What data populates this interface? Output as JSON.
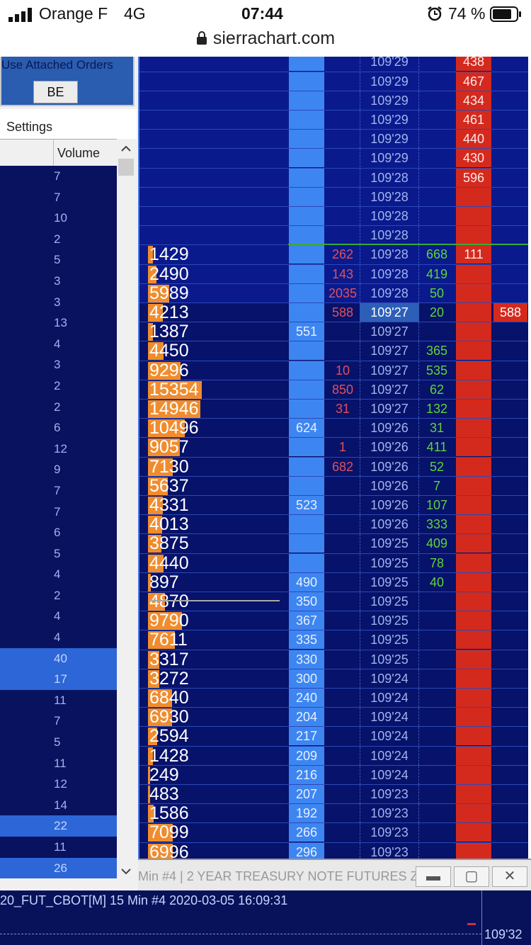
{
  "status_bar": {
    "carrier": "Orange F",
    "network": "4G",
    "time": "07:44",
    "battery": "74 %",
    "url": "sierrachart.com",
    "icons": [
      "signal-icon",
      "lock-icon",
      "alarm-icon",
      "battery-icon"
    ]
  },
  "left_panel": {
    "attached_orders_label": "Use Attached Orders",
    "be_button": "BE",
    "settings_tab": "Settings",
    "volume_header": "Volume",
    "volumes": [
      {
        "v": "7"
      },
      {
        "v": "7"
      },
      {
        "v": "10"
      },
      {
        "v": "2"
      },
      {
        "v": "5"
      },
      {
        "v": "3"
      },
      {
        "v": "3"
      },
      {
        "v": "13"
      },
      {
        "v": "4"
      },
      {
        "v": "3"
      },
      {
        "v": "2"
      },
      {
        "v": "2"
      },
      {
        "v": "6"
      },
      {
        "v": "12"
      },
      {
        "v": "9"
      },
      {
        "v": "7"
      },
      {
        "v": "7"
      },
      {
        "v": "6"
      },
      {
        "v": "5"
      },
      {
        "v": "4"
      },
      {
        "v": "2"
      },
      {
        "v": "4"
      },
      {
        "v": "4"
      },
      {
        "v": "40",
        "hl": true
      },
      {
        "v": "17",
        "hl": true
      },
      {
        "v": "11"
      },
      {
        "v": "7"
      },
      {
        "v": "5"
      },
      {
        "v": "11"
      },
      {
        "v": "12"
      },
      {
        "v": "14"
      },
      {
        "v": "22",
        "hl": true
      },
      {
        "v": "11"
      },
      {
        "v": "26",
        "hl": true
      }
    ]
  },
  "ladder": {
    "columns": [
      "volume",
      "bid",
      "sell",
      "price",
      "buy",
      "ask",
      "order"
    ],
    "current_price_row": 13,
    "max_volume": 15354,
    "colors": {
      "volume_bar": "#f08c2e",
      "bid": "#3d86f2",
      "ask": "#d42a1e",
      "sell_text": "#e0505a",
      "buy_text": "#5ed43a",
      "last_trade_line": "#3aa838"
    },
    "rows": [
      [
        "",
        "",
        "",
        "109'29",
        "",
        "438",
        ""
      ],
      [
        "",
        "",
        "",
        "109'29",
        "",
        "467",
        ""
      ],
      [
        "",
        "",
        "",
        "109'29",
        "",
        "434",
        ""
      ],
      [
        "",
        "",
        "",
        "109'29",
        "",
        "461",
        ""
      ],
      [
        "",
        "",
        "",
        "109'29",
        "",
        "440",
        ""
      ],
      [
        "",
        "",
        "",
        "109'29",
        "",
        "430",
        ""
      ],
      [
        "",
        "",
        "",
        "109'28",
        "",
        "596",
        ""
      ],
      [
        "",
        "",
        "",
        "109'28",
        "",
        "",
        ""
      ],
      [
        "",
        "",
        "",
        "109'28",
        "",
        "",
        ""
      ],
      [
        "",
        "",
        "",
        "109'28",
        "",
        "",
        ""
      ],
      [
        "1429",
        "",
        "262",
        "109'28",
        "668",
        "111",
        ""
      ],
      [
        "2490",
        "",
        "143",
        "109'28",
        "419",
        "",
        ""
      ],
      [
        "5989",
        "",
        "2035",
        "109'28",
        "50",
        "",
        ""
      ],
      [
        "4213",
        "",
        "588",
        "109'27",
        "20",
        "",
        "588"
      ],
      [
        "1387",
        "551",
        "",
        "109'27",
        "",
        "",
        ""
      ],
      [
        "4450",
        "",
        "",
        "109'27",
        "365",
        "",
        ""
      ],
      [
        "9296",
        "",
        "10",
        "109'27",
        "535",
        "",
        ""
      ],
      [
        "15354",
        "",
        "850",
        "109'27",
        "62",
        "",
        ""
      ],
      [
        "14946",
        "",
        "31",
        "109'27",
        "132",
        "",
        ""
      ],
      [
        "10496",
        "624",
        "",
        "109'26",
        "31",
        "",
        ""
      ],
      [
        "9057",
        "",
        "1",
        "109'26",
        "411",
        "",
        ""
      ],
      [
        "7130",
        "",
        "682",
        "109'26",
        "52",
        "",
        ""
      ],
      [
        "5637",
        "",
        "",
        "109'26",
        "7",
        "",
        ""
      ],
      [
        "4331",
        "523",
        "",
        "109'26",
        "107",
        "",
        ""
      ],
      [
        "4013",
        "",
        "",
        "109'26",
        "333",
        "",
        ""
      ],
      [
        "3875",
        "",
        "",
        "109'25",
        "409",
        "",
        ""
      ],
      [
        "4440",
        "",
        "",
        "109'25",
        "78",
        "",
        ""
      ],
      [
        "897",
        "490",
        "",
        "109'25",
        "40",
        "",
        ""
      ],
      [
        "4870",
        "350",
        "",
        "109'25",
        "",
        "",
        ""
      ],
      [
        "9790",
        "367",
        "",
        "109'25",
        "",
        "",
        ""
      ],
      [
        "7611",
        "335",
        "",
        "109'25",
        "",
        "",
        ""
      ],
      [
        "3317",
        "330",
        "",
        "109'25",
        "",
        "",
        ""
      ],
      [
        "3272",
        "300",
        "",
        "109'24",
        "",
        "",
        ""
      ],
      [
        "6840",
        "240",
        "",
        "109'24",
        "",
        "",
        ""
      ],
      [
        "6930",
        "204",
        "",
        "109'24",
        "",
        "",
        ""
      ],
      [
        "2594",
        "217",
        "",
        "109'24",
        "",
        "",
        ""
      ],
      [
        "1428",
        "209",
        "",
        "109'24",
        "",
        "",
        ""
      ],
      [
        "249",
        "216",
        "",
        "109'24",
        "",
        "",
        ""
      ],
      [
        "483",
        "207",
        "",
        "109'23",
        "",
        "",
        ""
      ],
      [
        "1586",
        "192",
        "",
        "109'23",
        "",
        "",
        ""
      ],
      [
        "7099",
        "266",
        "",
        "109'23",
        "",
        "",
        ""
      ],
      [
        "6996",
        "296",
        "",
        "109'23",
        "",
        "",
        ""
      ]
    ]
  },
  "window": {
    "title": "Min   #4 | 2 YEAR TREASURY NOTE FUTURES Z...",
    "buttons": [
      "minimize-icon",
      "maximize-icon",
      "close-icon"
    ]
  },
  "chart": {
    "info": "20_FUT_CBOT[M]  15 Min   #4 2020-03-05 16:09:31",
    "price_label": "109'32"
  }
}
